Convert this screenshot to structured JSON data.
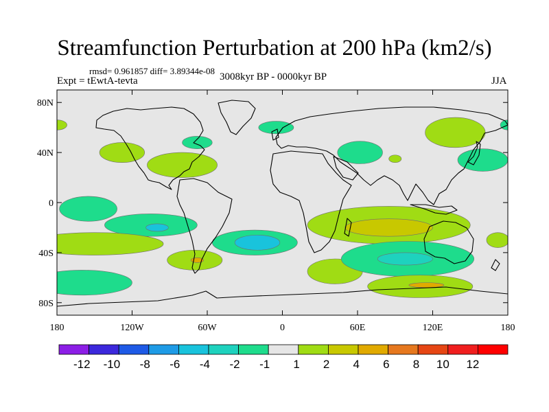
{
  "chart_data": {
    "type": "heatmap",
    "title": "Streamfunction Perturbation at 200 hPa (km2/s)",
    "stats": "rmsd= 0.961857 diff= 3.89344e-08",
    "experiment": "Expt = tEwtA-tevta",
    "period": "3008kyr BP - 0000kyr BP",
    "season": "JJA",
    "x_ticks": [
      {
        "value": -180,
        "label": "180"
      },
      {
        "value": -120,
        "label": "120W"
      },
      {
        "value": -60,
        "label": "60W"
      },
      {
        "value": 0,
        "label": "0"
      },
      {
        "value": 60,
        "label": "60E"
      },
      {
        "value": 120,
        "label": "120E"
      },
      {
        "value": 180,
        "label": "180"
      }
    ],
    "y_ticks": [
      {
        "value": 80,
        "label": "80N"
      },
      {
        "value": 40,
        "label": "40N"
      },
      {
        "value": 0,
        "label": "0"
      },
      {
        "value": -40,
        "label": "40S"
      },
      {
        "value": -80,
        "label": "80S"
      }
    ],
    "xlim": [
      -180,
      180
    ],
    "ylim": [
      -90,
      90
    ],
    "colorbar": {
      "labels": [
        "-12",
        "-10",
        "-8",
        "-6",
        "-4",
        "-2",
        "-1",
        "1",
        "2",
        "4",
        "6",
        "8",
        "10",
        "12"
      ],
      "colors": [
        "#8c1ee6",
        "#3c28dc",
        "#1e5ae6",
        "#1e9be6",
        "#19c3dc",
        "#1ed2be",
        "#1edc8c",
        "#e6e6e6",
        "#a0dc14",
        "#c8c800",
        "#e1aa00",
        "#e6781e",
        "#e64614",
        "#f01e1e",
        "#ff0000"
      ]
    },
    "field_background_color": "#e6e6e6",
    "anomaly_regions": [
      {
        "lon": -180,
        "lat": 62,
        "rx": 8,
        "ry": 4,
        "level": 1
      },
      {
        "lon": -128,
        "lat": 40,
        "rx": 18,
        "ry": 8,
        "level": 1
      },
      {
        "lon": -80,
        "lat": 30,
        "rx": 28,
        "ry": 10,
        "level": 1
      },
      {
        "lon": -68,
        "lat": 48,
        "rx": 12,
        "ry": 5,
        "level": -1
      },
      {
        "lon": -5,
        "lat": 60,
        "rx": 14,
        "ry": 5,
        "level": -1
      },
      {
        "lon": 62,
        "lat": 40,
        "rx": 18,
        "ry": 9,
        "level": -1
      },
      {
        "lon": 90,
        "lat": 35,
        "rx": 5,
        "ry": 3,
        "level": 1
      },
      {
        "lon": 138,
        "lat": 56,
        "rx": 24,
        "ry": 12,
        "level": 1
      },
      {
        "lon": 160,
        "lat": 34,
        "rx": 20,
        "ry": 9,
        "level": -1
      },
      {
        "lon": 180,
        "lat": 62,
        "rx": 6,
        "ry": 4,
        "level": -1
      },
      {
        "lon": -155,
        "lat": -5,
        "rx": 23,
        "ry": 10,
        "level": -1
      },
      {
        "lon": -105,
        "lat": -18,
        "rx": 37,
        "ry": 9,
        "level": -1
      },
      {
        "lon": -100,
        "lat": -20,
        "rx": 9,
        "ry": 3,
        "level": -4
      },
      {
        "lon": -150,
        "lat": -33,
        "rx": 55,
        "ry": 9,
        "level": 1
      },
      {
        "lon": -160,
        "lat": -64,
        "rx": 40,
        "ry": 10,
        "level": -1
      },
      {
        "lon": -70,
        "lat": -46,
        "rx": 22,
        "ry": 8,
        "level": 1
      },
      {
        "lon": -68,
        "lat": -46,
        "rx": 5,
        "ry": 2,
        "level": 4
      },
      {
        "lon": -22,
        "lat": -32,
        "rx": 34,
        "ry": 10,
        "level": -1
      },
      {
        "lon": -20,
        "lat": -32,
        "rx": 18,
        "ry": 6,
        "level": -4
      },
      {
        "lon": 42,
        "lat": -55,
        "rx": 22,
        "ry": 10,
        "level": 1
      },
      {
        "lon": 85,
        "lat": -18,
        "rx": 65,
        "ry": 15,
        "level": 1
      },
      {
        "lon": 85,
        "lat": -20,
        "rx": 35,
        "ry": 7,
        "level": 2
      },
      {
        "lon": 100,
        "lat": -45,
        "rx": 53,
        "ry": 14,
        "level": -1
      },
      {
        "lon": 98,
        "lat": -45,
        "rx": 22,
        "ry": 5,
        "level": -2
      },
      {
        "lon": 172,
        "lat": -30,
        "rx": 9,
        "ry": 6,
        "level": 1
      },
      {
        "lon": 110,
        "lat": -67,
        "rx": 42,
        "ry": 9,
        "level": 1
      },
      {
        "lon": 115,
        "lat": -66,
        "rx": 14,
        "ry": 2,
        "level": 4
      }
    ]
  }
}
